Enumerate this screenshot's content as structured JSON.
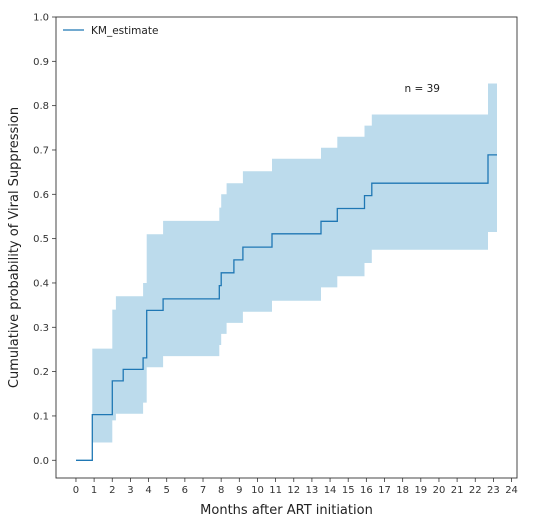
{
  "chart_data": {
    "type": "line",
    "xlabel": "Months after ART initiation",
    "ylabel": "Cumulative probability of Viral Suppression",
    "xlim": [
      -1.1,
      24.3
    ],
    "ylim": [
      -0.04,
      1.0
    ],
    "xticks": [
      0,
      1,
      2,
      3,
      4,
      5,
      6,
      7,
      8,
      9,
      10,
      11,
      12,
      13,
      14,
      15,
      16,
      17,
      18,
      19,
      20,
      21,
      22,
      23,
      24
    ],
    "yticks": [
      0.0,
      0.1,
      0.2,
      0.3,
      0.4,
      0.5,
      0.6,
      0.7,
      0.8,
      0.9,
      1.0
    ],
    "ytick_labels": [
      "0.0",
      "0.1",
      "0.2",
      "0.3",
      "0.4",
      "0.5",
      "0.6",
      "0.7",
      "0.8",
      "0.9",
      "1.0"
    ],
    "legend": {
      "position": "top-left",
      "entries": [
        "KM_estimate"
      ]
    },
    "annotation": "n = 39",
    "grid": false,
    "colors": {
      "line": "#1f77b4",
      "band": "#a6cfe6"
    },
    "series": [
      {
        "name": "KM_estimate",
        "step": "post",
        "x": [
          0,
          0.9,
          1.1,
          2.0,
          2.2,
          2.6,
          3.7,
          3.9,
          4.8,
          7.9,
          8.0,
          8.3,
          8.7,
          9.2,
          10.8,
          13.5,
          14.4,
          15.9,
          16.3,
          22.7,
          23.2
        ],
        "y": [
          0.0,
          0.103,
          0.103,
          0.179,
          0.179,
          0.205,
          0.231,
          0.338,
          0.364,
          0.394,
          0.423,
          0.423,
          0.452,
          0.481,
          0.511,
          0.539,
          0.568,
          0.597,
          0.625,
          0.689,
          0.689
        ],
        "ci_lower": [
          0.0,
          0.04,
          0.04,
          0.09,
          0.105,
          0.105,
          0.13,
          0.21,
          0.235,
          0.26,
          0.285,
          0.31,
          0.31,
          0.335,
          0.36,
          0.39,
          0.415,
          0.445,
          0.475,
          0.515,
          0.515
        ],
        "ci_upper": [
          0.0,
          0.252,
          0.252,
          0.34,
          0.37,
          0.37,
          0.4,
          0.51,
          0.54,
          0.57,
          0.6,
          0.625,
          0.625,
          0.652,
          0.68,
          0.705,
          0.73,
          0.755,
          0.78,
          0.85,
          0.85
        ]
      }
    ]
  }
}
